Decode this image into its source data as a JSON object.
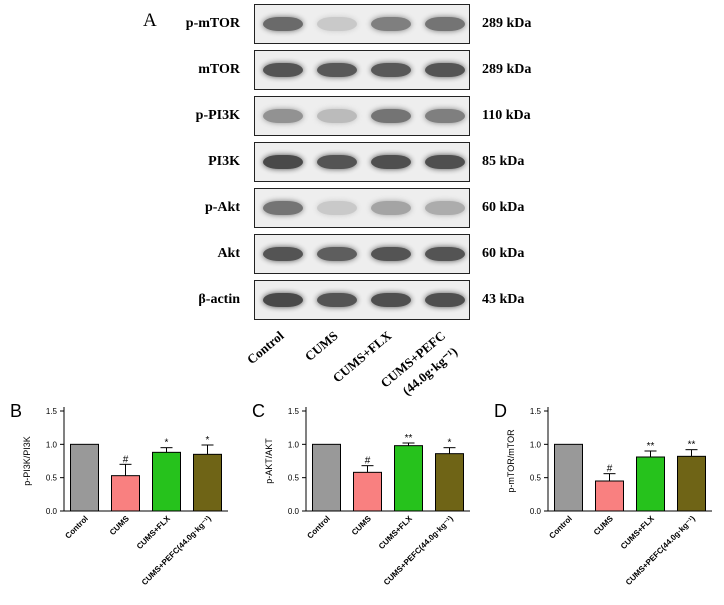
{
  "blot": {
    "panel_letter": "A",
    "lanes": [
      "Control",
      "CUMS",
      "CUMS+FLX",
      "CUMS+PEFC"
    ],
    "lane4_second_line": "(44.0g·kg⁻¹)",
    "rows": [
      {
        "label": "p-mTOR",
        "kda": "289 kDa"
      },
      {
        "label": "mTOR",
        "kda": "289 kDa"
      },
      {
        "label": "p-PI3K",
        "kda": "110 kDa"
      },
      {
        "label": "PI3K",
        "kda": "85 kDa"
      },
      {
        "label": "p-Akt",
        "kda": "60 kDa"
      },
      {
        "label": "Akt",
        "kda": "60 kDa"
      },
      {
        "label": "β-actin",
        "kda": "43 kDa"
      }
    ]
  },
  "chart_data": [
    {
      "type": "bar",
      "panel_letter": "B",
      "ylabel": "p-PI3K/PI3K",
      "categories": [
        "Control",
        "CUMS",
        "CUMS+FLX",
        "CUMS+PEFC(44.0g·kg⁻¹)"
      ],
      "values": [
        1.0,
        0.53,
        0.88,
        0.85
      ],
      "errors": [
        0,
        0.17,
        0.07,
        0.14
      ],
      "significance": [
        "",
        "#",
        "*",
        "*"
      ],
      "colors": [
        "#999999",
        "#f98080",
        "#26c21c",
        "#6f6416"
      ],
      "ylim": [
        0,
        1.5
      ],
      "yticks": [
        "0.0",
        "0.5",
        "1.0",
        "1.5"
      ]
    },
    {
      "type": "bar",
      "panel_letter": "C",
      "ylabel": "p-AKT/AKT",
      "categories": [
        "Control",
        "CUMS",
        "CUMS+FLX",
        "CUMS+PEFC(44.0g·kg⁻¹)"
      ],
      "values": [
        1.0,
        0.58,
        0.98,
        0.86
      ],
      "errors": [
        0,
        0.1,
        0.04,
        0.09
      ],
      "significance": [
        "",
        "#",
        "**",
        "*"
      ],
      "colors": [
        "#999999",
        "#f98080",
        "#26c21c",
        "#6f6416"
      ],
      "ylim": [
        0,
        1.5
      ],
      "yticks": [
        "0.0",
        "0.5",
        "1.0",
        "1.5"
      ]
    },
    {
      "type": "bar",
      "panel_letter": "D",
      "ylabel": "p-mTOR/mTOR",
      "categories": [
        "Control",
        "CUMS",
        "CUMS+FLX",
        "CUMS+PEFC(44.0g·kg⁻¹)"
      ],
      "values": [
        1.0,
        0.45,
        0.81,
        0.82
      ],
      "errors": [
        0,
        0.11,
        0.09,
        0.1
      ],
      "significance": [
        "",
        "#",
        "**",
        "**"
      ],
      "colors": [
        "#999999",
        "#f98080",
        "#26c21c",
        "#6f6416"
      ],
      "ylim": [
        0,
        1.5
      ],
      "yticks": [
        "0.0",
        "0.5",
        "1.0",
        "1.5"
      ]
    }
  ]
}
